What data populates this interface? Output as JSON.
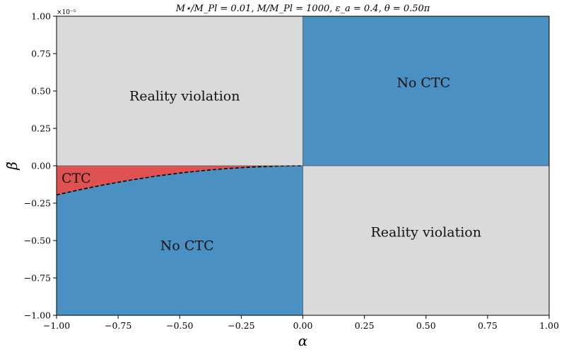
{
  "chart_data": {
    "type": "area",
    "title": "M⋆/M_Pl = 0.01,  M/M_Pl = 1000,  ε_a = 0.4,  θ = 0.50π",
    "xlabel": "α",
    "ylabel": "β̃",
    "xlim": [
      -1.0,
      1.0
    ],
    "ylim": [
      -1.0,
      1.0
    ],
    "y_scale_note": "×10⁻⁵",
    "x_ticks": [
      "−1.00",
      "−0.75",
      "−0.50",
      "−0.25",
      "0.00",
      "0.25",
      "0.50",
      "0.75",
      "1.00"
    ],
    "y_ticks": [
      "−1.00",
      "−0.75",
      "−0.50",
      "−0.25",
      "0.00",
      "0.25",
      "0.50",
      "0.75",
      "1.00"
    ],
    "x_tick_values": [
      -1.0,
      -0.75,
      -0.5,
      -0.25,
      0.0,
      0.25,
      0.5,
      0.75,
      1.0
    ],
    "y_tick_values": [
      -1.0,
      -0.75,
      -0.5,
      -0.25,
      0.0,
      0.25,
      0.5,
      0.75,
      1.0
    ],
    "grid": false,
    "colors": {
      "reality_violation": "#dadada",
      "no_ctc": "#4a90c2",
      "ctc": "#e05252",
      "boundary": "#000000"
    },
    "regions": [
      {
        "label": "Reality violation",
        "kind": "reality_violation",
        "x_range": [
          -1.0,
          0.0
        ],
        "y_range": [
          0.0,
          1.0
        ],
        "label_at": [
          -0.48,
          0.46
        ]
      },
      {
        "label": "No CTC",
        "kind": "no_ctc",
        "x_range": [
          0.0,
          1.0
        ],
        "y_range": [
          0.0,
          1.0
        ],
        "label_at": [
          0.49,
          0.55
        ]
      },
      {
        "label": "Reality violation",
        "kind": "reality_violation",
        "x_range": [
          0.0,
          1.0
        ],
        "y_range": [
          -1.0,
          0.0
        ],
        "label_at": [
          0.5,
          -0.45
        ]
      },
      {
        "label": "No CTC",
        "kind": "no_ctc",
        "x_range": [
          -1.0,
          0.0
        ],
        "y_range": [
          -1.0,
          0.0
        ],
        "label_at": [
          -0.47,
          -0.54
        ]
      },
      {
        "label": "CTC",
        "kind": "ctc",
        "label_at": [
          -0.92,
          -0.09
        ]
      }
    ],
    "boundary_curve": {
      "style": "dashed",
      "points": [
        [
          -1.0,
          -0.195
        ],
        [
          -0.9,
          -0.158
        ],
        [
          -0.8,
          -0.125
        ],
        [
          -0.7,
          -0.096
        ],
        [
          -0.6,
          -0.07
        ],
        [
          -0.5,
          -0.049
        ],
        [
          -0.4,
          -0.031
        ],
        [
          -0.3,
          -0.018
        ],
        [
          -0.2,
          -0.008
        ],
        [
          -0.1,
          -0.002
        ],
        [
          0.0,
          0.0
        ]
      ]
    }
  }
}
